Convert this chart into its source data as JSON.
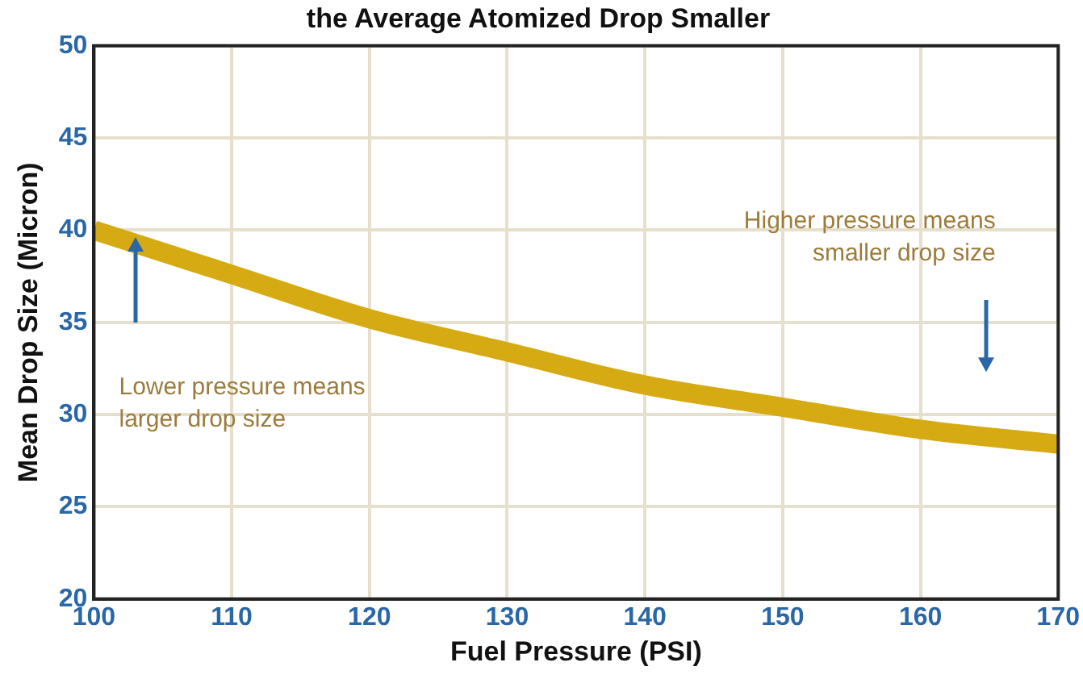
{
  "chart_data": {
    "type": "line",
    "title": "the Average Atomized Drop Smaller",
    "xlabel": "Fuel Pressure (PSI)",
    "ylabel": "Mean Drop Size (Micron)",
    "x": [
      100,
      110,
      120,
      130,
      140,
      150,
      160,
      170
    ],
    "series": [
      {
        "color": "#d6aa12",
        "values": [
          40.0,
          37.6,
          35.2,
          33.4,
          31.6,
          30.4,
          29.2,
          28.4
        ]
      }
    ],
    "xlim": [
      100,
      170
    ],
    "xticks": [
      100,
      110,
      120,
      130,
      140,
      150,
      160,
      170
    ],
    "ylim": [
      20,
      50
    ],
    "yticks": [
      20,
      25,
      30,
      35,
      40,
      45,
      50
    ],
    "grid": true,
    "legend": false,
    "marker": "none",
    "line_style": "solid",
    "annotations": [
      "Lower pressure means\nlarger drop size",
      "Higher pressure means\nsmaller drop size"
    ]
  }
}
